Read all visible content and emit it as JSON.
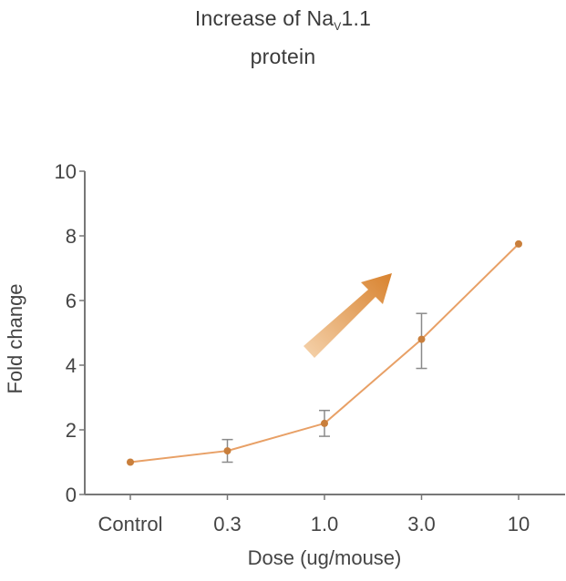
{
  "chart_data": {
    "type": "line",
    "title_line1_prefix": "Increase of Na",
    "title_subscript": "V",
    "title_line1_suffix": "1.1",
    "title_line2": "protein",
    "xlabel": "Dose (ug/mouse)",
    "ylabel": "Fold change",
    "categories": [
      "Control",
      "0.3",
      "1.0",
      "3.0",
      "10"
    ],
    "series": [
      {
        "name": "Na_V1.1 protein",
        "values": [
          1.0,
          1.35,
          2.2,
          4.8,
          7.75
        ],
        "error_low": [
          null,
          1.0,
          1.8,
          3.9,
          null
        ],
        "error_high": [
          null,
          1.7,
          2.6,
          5.6,
          null
        ]
      }
    ],
    "ylim": [
      0,
      10
    ],
    "yticks": [
      "0",
      "2",
      "4",
      "6",
      "8",
      "10"
    ],
    "grid": false,
    "annotation": "upward-trend-arrow",
    "colors": {
      "line": "#e8a066",
      "marker": "#c97f3c",
      "error": "#8a8a8a",
      "axis": "#777777",
      "arrow_start": "#f5d3ad",
      "arrow_end": "#d8822e"
    }
  }
}
